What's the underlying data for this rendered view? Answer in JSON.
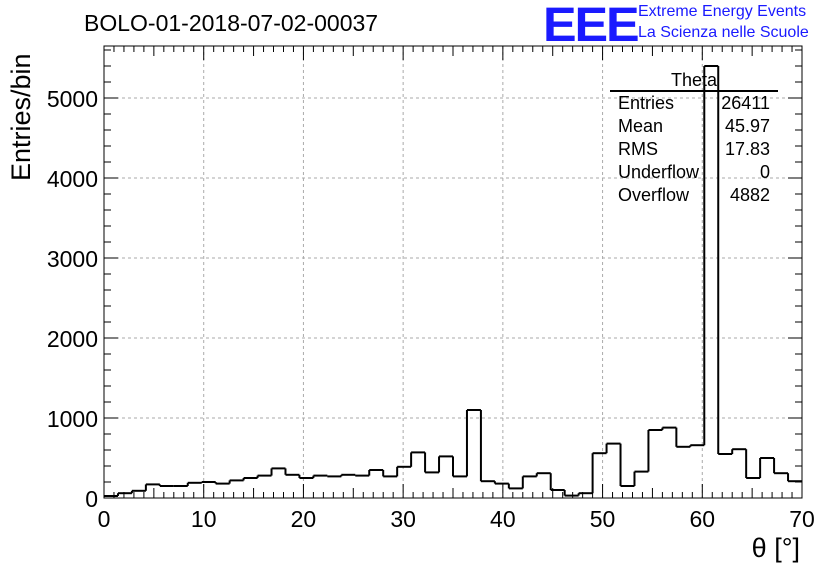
{
  "header": {
    "title": "BOLO-01-2018-07-02-00037",
    "logo_text": "EEE",
    "logo_line1": "Extreme Energy Events",
    "logo_line2": "La Scienza nelle Scuole"
  },
  "stats_box": {
    "title": "Theta",
    "rows": [
      {
        "label": "Entries",
        "value": "26411"
      },
      {
        "label": "Mean",
        "value": "45.97"
      },
      {
        "label": "RMS",
        "value": "17.83"
      },
      {
        "label": "Underflow",
        "value": "0"
      },
      {
        "label": "Overflow",
        "value": "4882"
      }
    ]
  },
  "colors": {
    "logo": "#1a1aff",
    "line": "#000000",
    "grid": "#aaaaaa"
  },
  "chart_data": {
    "type": "histogram",
    "title": "BOLO-01-2018-07-02-00037",
    "xlabel": "θ [°]",
    "ylabel": "Entries/bin",
    "xlim": [
      0,
      70
    ],
    "ylim": [
      0,
      5650
    ],
    "bin_width": 1.4,
    "bin_edges_start": 0,
    "x_ticks": [
      "0",
      "10",
      "20",
      "30",
      "40",
      "50",
      "60",
      "70"
    ],
    "y_ticks": [
      "0",
      "1000",
      "2000",
      "3000",
      "4000",
      "5000"
    ],
    "grid": true,
    "series": [
      {
        "values": [
          25,
          60,
          90,
          170,
          150,
          150,
          190,
          200,
          180,
          220,
          250,
          280,
          370,
          290,
          250,
          280,
          270,
          290,
          280,
          350,
          270,
          390,
          570,
          320,
          520,
          270,
          1100,
          210,
          180,
          120,
          270,
          310,
          100,
          30,
          60,
          560,
          680,
          150,
          330,
          850,
          880,
          640,
          660,
          5400,
          550,
          610,
          250,
          500,
          310,
          210
        ]
      }
    ]
  }
}
